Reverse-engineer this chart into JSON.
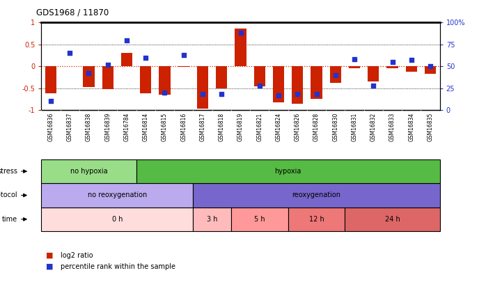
{
  "title": "GDS1968 / 11870",
  "samples": [
    "GSM16836",
    "GSM16837",
    "GSM16838",
    "GSM16839",
    "GSM16784",
    "GSM16814",
    "GSM16815",
    "GSM16816",
    "GSM16817",
    "GSM16818",
    "GSM16819",
    "GSM16821",
    "GSM16824",
    "GSM16826",
    "GSM16828",
    "GSM16830",
    "GSM16831",
    "GSM16832",
    "GSM16833",
    "GSM16834",
    "GSM16835"
  ],
  "log2_ratio": [
    -0.62,
    0.0,
    -0.48,
    -0.52,
    0.3,
    -0.62,
    -0.65,
    -0.02,
    -0.97,
    -0.5,
    0.87,
    -0.46,
    -0.83,
    -0.85,
    -0.75,
    -0.38,
    -0.04,
    -0.35,
    -0.05,
    -0.12,
    -0.17
  ],
  "percentile": [
    10,
    65,
    42,
    52,
    80,
    60,
    20,
    63,
    18,
    18,
    88,
    28,
    17,
    18,
    18,
    40,
    58,
    28,
    55,
    57,
    50
  ],
  "stress_groups": [
    {
      "label": "no hypoxia",
      "start": 0,
      "end": 5,
      "color": "#99dd88"
    },
    {
      "label": "hypoxia",
      "start": 5,
      "end": 21,
      "color": "#55bb44"
    }
  ],
  "protocol_groups": [
    {
      "label": "no reoxygenation",
      "start": 0,
      "end": 8,
      "color": "#bbaaee"
    },
    {
      "label": "reoxygenation",
      "start": 8,
      "end": 21,
      "color": "#7766cc"
    }
  ],
  "time_groups": [
    {
      "label": "0 h",
      "start": 0,
      "end": 8,
      "color": "#ffdddd"
    },
    {
      "label": "3 h",
      "start": 8,
      "end": 10,
      "color": "#ffbbbb"
    },
    {
      "label": "5 h",
      "start": 10,
      "end": 13,
      "color": "#ff9999"
    },
    {
      "label": "12 h",
      "start": 13,
      "end": 16,
      "color": "#ee7777"
    },
    {
      "label": "24 h",
      "start": 16,
      "end": 21,
      "color": "#dd6666"
    }
  ],
  "bar_color": "#cc2200",
  "dot_color": "#2233cc",
  "ref_line_color": "#cc2200",
  "ylim_left": [
    -1.0,
    1.0
  ],
  "yticks_left": [
    -1.0,
    -0.5,
    0.0,
    0.5,
    1.0
  ],
  "ytick_labels_left": [
    "-1",
    "-0.5",
    "0",
    "0.5",
    "1"
  ],
  "yticks_right": [
    0,
    25,
    50,
    75,
    100
  ],
  "ytick_labels_right": [
    "0",
    "25",
    "50",
    "75",
    "100%"
  ],
  "legend_red": "log2 ratio",
  "legend_blue": "percentile rank within the sample",
  "xtick_bg": "#dddddd"
}
